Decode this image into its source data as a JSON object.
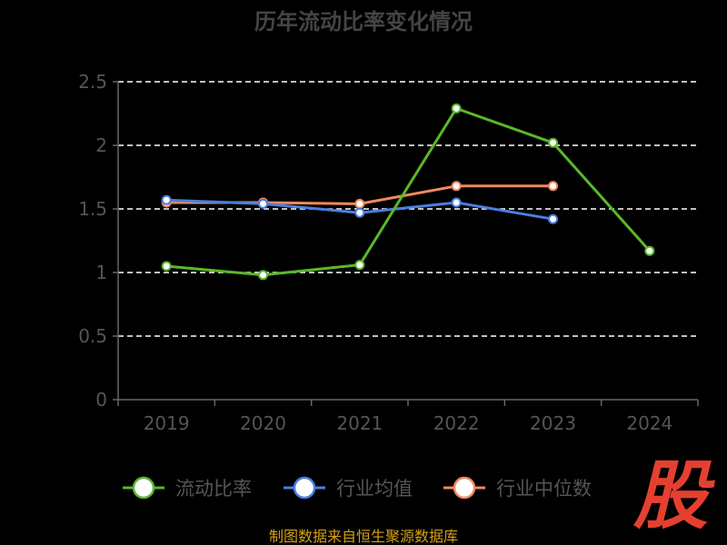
{
  "chart_data": {
    "type": "line",
    "title": "历年流动比率变化情况",
    "categories": [
      "2019",
      "2020",
      "2021",
      "2022",
      "2023",
      "2024"
    ],
    "ylim": [
      0,
      2.5
    ],
    "yticks": [
      "0",
      "0.5",
      "1",
      "1.5",
      "2",
      "2.5"
    ],
    "grid": true,
    "legend_position": "bottom",
    "series": [
      {
        "name": "流动比率",
        "color": "#5ab82a",
        "values": [
          1.05,
          0.98,
          1.06,
          2.29,
          2.02,
          1.17
        ]
      },
      {
        "name": "行业均值",
        "color": "#4a7fe0",
        "values": [
          1.57,
          1.54,
          1.47,
          1.55,
          1.42,
          null
        ]
      },
      {
        "name": "行业中位数",
        "color": "#f08a5d",
        "values": [
          1.55,
          1.55,
          1.54,
          1.68,
          1.68,
          null
        ]
      }
    ]
  },
  "source_note": "制图数据来自恒生聚源数据库",
  "brand_logo_text": "股"
}
